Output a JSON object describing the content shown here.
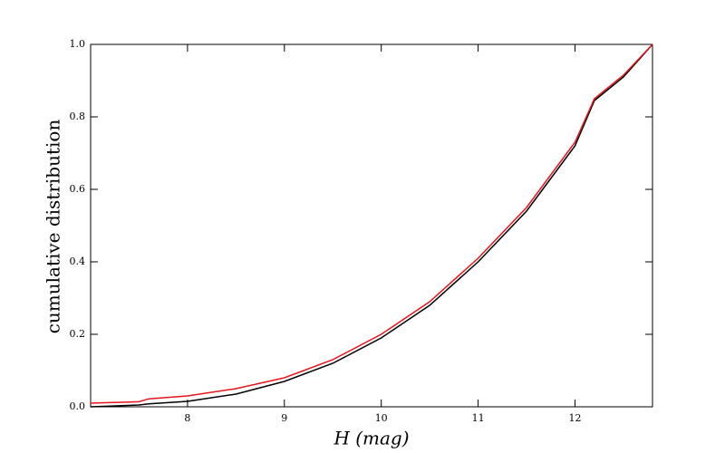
{
  "chart_data": {
    "type": "line",
    "x_label": "H (mag)",
    "y_label": "cumulative distribution",
    "x": [
      7.0,
      7.5,
      7.6,
      8.0,
      8.5,
      9.0,
      9.5,
      10.0,
      10.5,
      11.0,
      11.5,
      12.0,
      12.2,
      12.5,
      12.8
    ],
    "series": [
      {
        "color": "#000000",
        "values": [
          0.0,
          0.005,
          0.008,
          0.015,
          0.035,
          0.07,
          0.12,
          0.19,
          0.28,
          0.4,
          0.54,
          0.72,
          0.845,
          0.91,
          1.0
        ]
      },
      {
        "color": "#e8141c",
        "values": [
          0.01,
          0.014,
          0.022,
          0.03,
          0.05,
          0.08,
          0.13,
          0.2,
          0.29,
          0.41,
          0.55,
          0.73,
          0.85,
          0.915,
          1.0
        ]
      }
    ],
    "xlim": [
      7.0,
      12.8
    ],
    "xticks": [
      8,
      9,
      10,
      11,
      12
    ],
    "ylim": [
      0.0,
      1.0
    ],
    "yticks": [
      {
        "value": 0.0,
        "label": "0.0"
      },
      0.2,
      0.4,
      0.6,
      0.8,
      {
        "value": 1.0,
        "label": "1.0"
      }
    ],
    "grid": false
  }
}
